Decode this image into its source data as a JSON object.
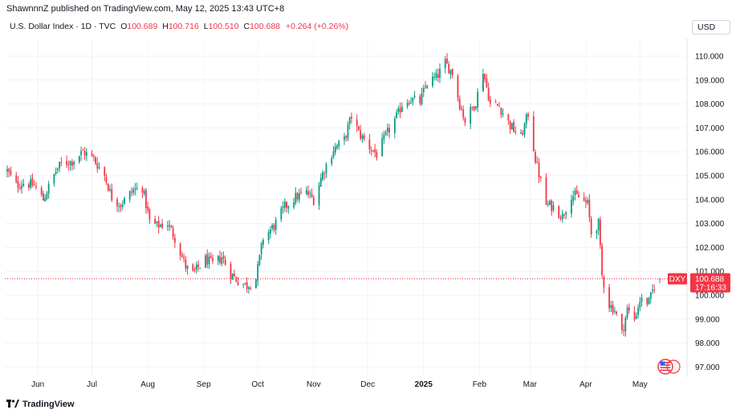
{
  "header": {
    "title": "ShawnnnZ published on TradingView.com, May 12, 2025 13:43 UTC+8"
  },
  "legend": {
    "name": "U.S. Dollar Index · 1D · TVC",
    "open_label": "O",
    "open": "100.689",
    "high_label": "H",
    "high": "100.716",
    "low_label": "L",
    "low": "100.510",
    "close_label": "C",
    "close": "100.688",
    "change": "+0.264 (+0.26%)"
  },
  "currency": "USD",
  "symbol_tag": "DXY",
  "price_tag": "100.688",
  "countdown": "17:16:33",
  "brand": "TradingView",
  "colors": {
    "up": "#089981",
    "down": "#f23645",
    "grid": "#f0f3fa",
    "price_line": "#f23645"
  },
  "chart_data": {
    "type": "candlestick",
    "title": "U.S. Dollar Index · 1D · TVC",
    "ylim": [
      96.5,
      110.5
    ],
    "y_ticks": [
      "110.000",
      "109.000",
      "108.000",
      "107.000",
      "106.000",
      "105.000",
      "104.000",
      "103.000",
      "102.000",
      "101.000",
      "100.000",
      "99.000",
      "98.000",
      "97.000"
    ],
    "x_ticks": [
      {
        "label": "Jun",
        "date": "2024-06-01"
      },
      {
        "label": "Jul",
        "date": "2024-07-01"
      },
      {
        "label": "Aug",
        "date": "2024-08-01"
      },
      {
        "label": "Sep",
        "date": "2024-09-01"
      },
      {
        "label": "Oct",
        "date": "2024-10-01"
      },
      {
        "label": "Nov",
        "date": "2024-11-01"
      },
      {
        "label": "Dec",
        "date": "2024-12-01"
      },
      {
        "label": "2025",
        "date": "2025-01-01"
      },
      {
        "label": "Feb",
        "date": "2025-02-01"
      },
      {
        "label": "Mar",
        "date": "2025-03-01"
      },
      {
        "label": "Apr",
        "date": "2025-04-01"
      },
      {
        "label": "May",
        "date": "2025-05-01"
      }
    ],
    "x_range": [
      "2024-05-15",
      "2025-05-12"
    ],
    "grid": true,
    "last_close": 100.688,
    "anchors": [
      [
        "2024-05-15",
        105.2
      ],
      [
        "2024-05-20",
        104.6
      ],
      [
        "2024-05-24",
        104.7
      ],
      [
        "2024-05-30",
        104.6
      ],
      [
        "2024-06-04",
        104.0
      ],
      [
        "2024-06-11",
        105.2
      ],
      [
        "2024-06-14",
        105.5
      ],
      [
        "2024-06-20",
        105.6
      ],
      [
        "2024-06-26",
        106.0
      ],
      [
        "2024-07-02",
        105.7
      ],
      [
        "2024-07-08",
        105.0
      ],
      [
        "2024-07-12",
        104.1
      ],
      [
        "2024-07-17",
        103.8
      ],
      [
        "2024-07-24",
        104.4
      ],
      [
        "2024-07-29",
        104.5
      ],
      [
        "2024-08-02",
        103.1
      ],
      [
        "2024-08-06",
        102.9
      ],
      [
        "2024-08-12",
        103.0
      ],
      [
        "2024-08-16",
        102.4
      ],
      [
        "2024-08-22",
        101.2
      ],
      [
        "2024-08-26",
        100.9
      ],
      [
        "2024-09-02",
        101.5
      ],
      [
        "2024-09-06",
        101.3
      ],
      [
        "2024-09-11",
        101.6
      ],
      [
        "2024-09-16",
        100.9
      ],
      [
        "2024-09-20",
        100.6
      ],
      [
        "2024-09-25",
        100.4
      ],
      [
        "2024-09-30",
        100.7
      ],
      [
        "2024-10-04",
        102.4
      ],
      [
        "2024-10-10",
        102.9
      ],
      [
        "2024-10-16",
        103.7
      ],
      [
        "2024-10-22",
        104.1
      ],
      [
        "2024-10-28",
        104.3
      ],
      [
        "2024-11-01",
        104.0
      ],
      [
        "2024-11-06",
        105.1
      ],
      [
        "2024-11-12",
        106.1
      ],
      [
        "2024-11-18",
        106.5
      ],
      [
        "2024-11-22",
        107.5
      ],
      [
        "2024-11-26",
        106.8
      ],
      [
        "2024-12-02",
        106.2
      ],
      [
        "2024-12-06",
        105.9
      ],
      [
        "2024-12-12",
        106.8
      ],
      [
        "2024-12-18",
        107.6
      ],
      [
        "2024-12-20",
        108.0
      ],
      [
        "2024-12-24",
        108.2
      ],
      [
        "2024-12-30",
        108.1
      ],
      [
        "2025-01-03",
        108.9
      ],
      [
        "2025-01-08",
        109.1
      ],
      [
        "2025-01-13",
        109.7
      ],
      [
        "2025-01-17",
        109.3
      ],
      [
        "2025-01-21",
        108.0
      ],
      [
        "2025-01-24",
        107.3
      ],
      [
        "2025-01-30",
        108.1
      ],
      [
        "2025-02-03",
        109.4
      ],
      [
        "2025-02-07",
        108.0
      ],
      [
        "2025-02-12",
        107.9
      ],
      [
        "2025-02-18",
        107.1
      ],
      [
        "2025-02-24",
        106.6
      ],
      [
        "2025-02-28",
        107.6
      ],
      [
        "2025-03-04",
        105.7
      ],
      [
        "2025-03-10",
        103.8
      ],
      [
        "2025-03-14",
        103.7
      ],
      [
        "2025-03-19",
        103.3
      ],
      [
        "2025-03-24",
        104.2
      ],
      [
        "2025-03-28",
        104.1
      ],
      [
        "2025-04-02",
        103.8
      ],
      [
        "2025-04-04",
        102.6
      ],
      [
        "2025-04-08",
        103.0
      ],
      [
        "2025-04-10",
        100.8
      ],
      [
        "2025-04-14",
        99.6
      ],
      [
        "2025-04-17",
        99.4
      ],
      [
        "2025-04-21",
        98.4
      ],
      [
        "2025-04-24",
        99.4
      ],
      [
        "2025-04-28",
        99.0
      ],
      [
        "2025-05-01",
        99.8
      ],
      [
        "2025-05-06",
        99.7
      ],
      [
        "2025-05-09",
        100.4
      ],
      [
        "2025-05-12",
        100.688
      ]
    ]
  }
}
